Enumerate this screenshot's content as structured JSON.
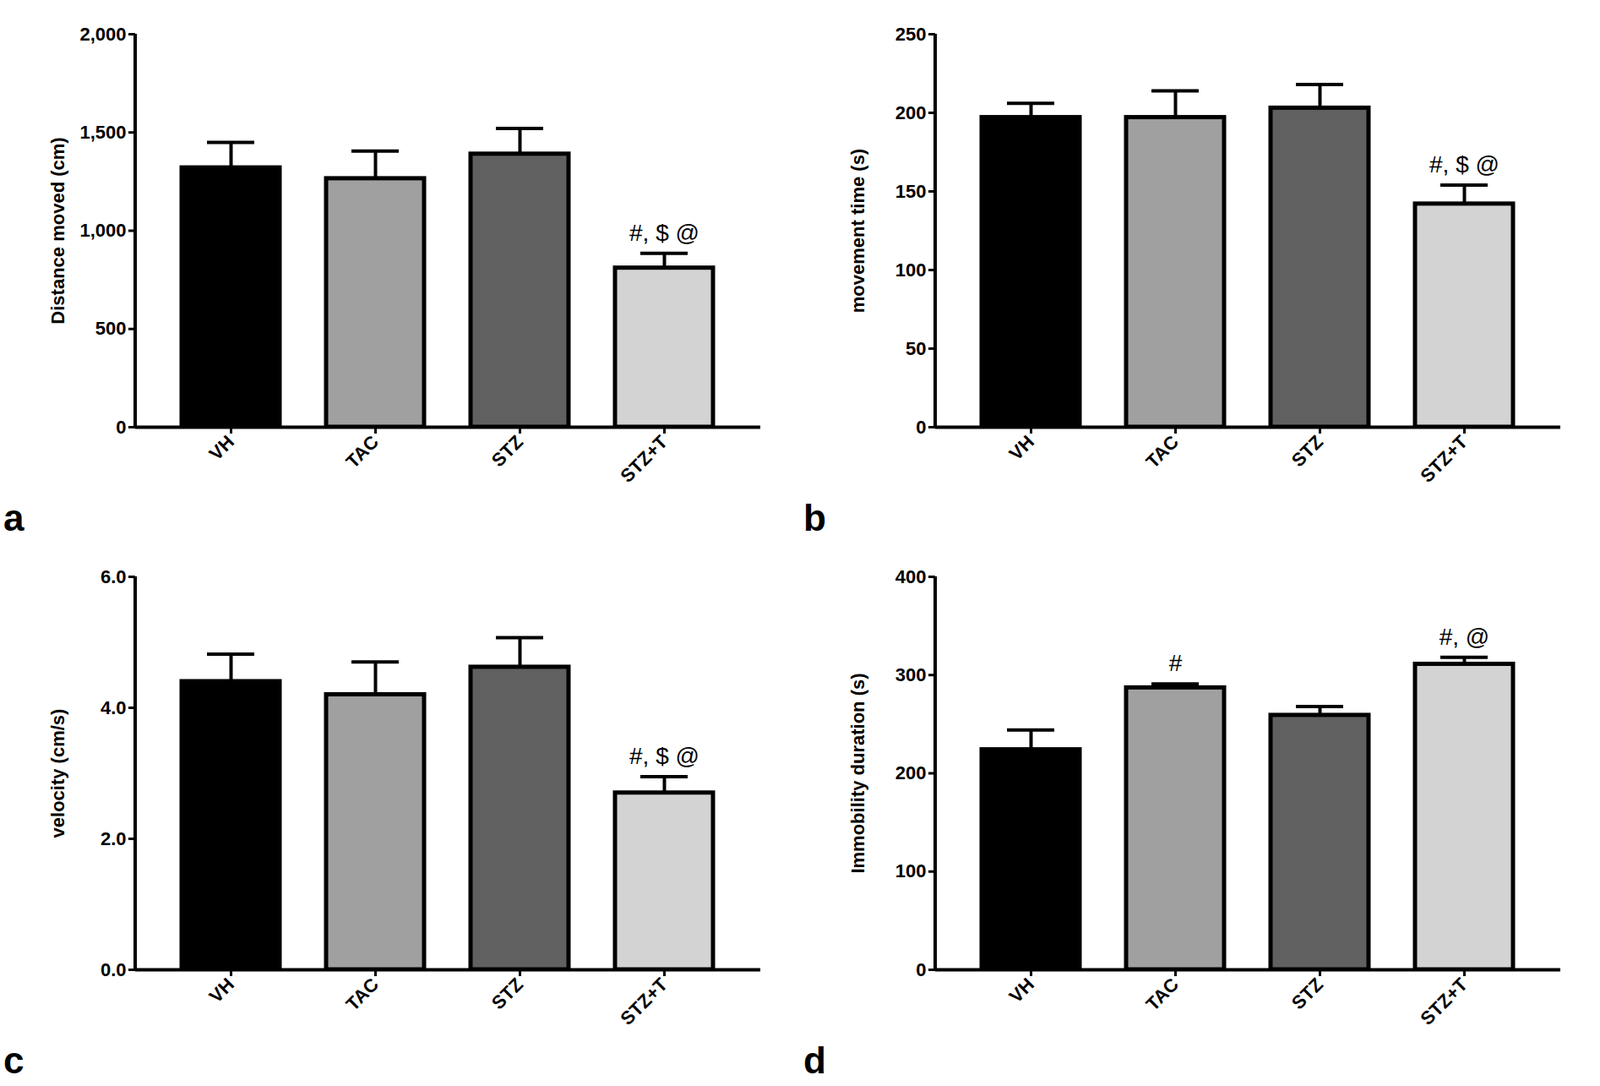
{
  "chart_data": [
    {
      "type": "bar",
      "label": "a",
      "y_label": "Distance moved (cm)",
      "categories": [
        "VH",
        "TAC",
        "STZ",
        "STZ+T"
      ],
      "values": [
        1320,
        1265,
        1390,
        810
      ],
      "errors": [
        130,
        140,
        130,
        75
      ],
      "annotations": [
        null,
        null,
        null,
        "#, $ @"
      ],
      "colors": [
        "#000000",
        "#a0a0a0",
        "#606060",
        "#d3d3d3"
      ],
      "ylim": [
        0,
        2000
      ],
      "yticks": [
        0,
        500,
        1000,
        1500,
        2000
      ]
    },
    {
      "type": "bar",
      "label": "b",
      "y_label": "movement time (s)",
      "categories": [
        "VH",
        "TAC",
        "STZ",
        "STZ+T"
      ],
      "values": [
        197,
        197,
        203,
        142
      ],
      "errors": [
        9,
        17,
        15,
        12
      ],
      "annotations": [
        null,
        null,
        null,
        "#, $ @"
      ],
      "colors": [
        "#000000",
        "#a0a0a0",
        "#606060",
        "#d3d3d3"
      ],
      "ylim": [
        0,
        250
      ],
      "yticks": [
        0,
        50,
        100,
        150,
        200,
        250
      ]
    },
    {
      "type": "bar",
      "label": "c",
      "y_label": "velocity (cm/s)",
      "categories": [
        "VH",
        "TAC",
        "STZ",
        "STZ+T"
      ],
      "values": [
        4.4,
        4.2,
        4.62,
        2.7
      ],
      "errors": [
        0.42,
        0.5,
        0.45,
        0.25
      ],
      "annotations": [
        null,
        null,
        null,
        "#, $ @"
      ],
      "colors": [
        "#000000",
        "#a0a0a0",
        "#606060",
        "#d3d3d3"
      ],
      "ylim": [
        0,
        6
      ],
      "yticks": [
        0,
        2,
        4,
        6
      ]
    },
    {
      "type": "bar",
      "label": "d",
      "y_label": "Immobility duration (s)",
      "categories": [
        "VH",
        "TAC",
        "STZ",
        "STZ+T"
      ],
      "values": [
        224,
        287,
        259,
        311
      ],
      "errors": [
        20,
        4,
        9,
        7
      ],
      "annotations": [
        null,
        "#",
        null,
        "#, @"
      ],
      "colors": [
        "#000000",
        "#a0a0a0",
        "#606060",
        "#d3d3d3"
      ],
      "ylim": [
        0,
        400
      ],
      "yticks": [
        0,
        100,
        200,
        300,
        400
      ]
    }
  ]
}
